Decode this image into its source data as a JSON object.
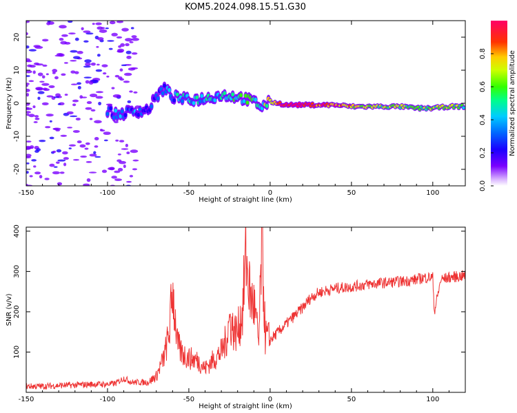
{
  "title": "KOM5.2024.098.15.51.G30",
  "colors": {
    "snr_line": "#ee3333",
    "axis": "#000000"
  },
  "chart_data": [
    {
      "type": "heatmap",
      "xlabel": "Height of straight line (km)",
      "ylabel": "Frequency (Hz)",
      "xlim": [
        -150,
        120
      ],
      "ylim": [
        -25,
        25
      ],
      "x_ticks": [
        -150,
        -100,
        -50,
        0,
        50,
        100
      ],
      "y_ticks": [
        -20,
        -10,
        0,
        10,
        20
      ],
      "colorbar": {
        "label": "Normalized spectral amplitude",
        "range": [
          0,
          1
        ],
        "ticks": [
          "0.0",
          "0.2",
          "0.4",
          "0.6",
          "0.8"
        ],
        "colormap": "rainbow (violet-blue-cyan-green-yellow-red-magenta)"
      },
      "ridge": [
        {
          "x": -100,
          "y": -2,
          "amp": 0.15
        },
        {
          "x": -95,
          "y": -3.5,
          "amp": 0.2
        },
        {
          "x": -85,
          "y": -2.5,
          "amp": 0.2
        },
        {
          "x": -75,
          "y": -2,
          "amp": 0.15
        },
        {
          "x": -70,
          "y": 2,
          "amp": 0.15
        },
        {
          "x": -65,
          "y": 4.5,
          "amp": 0.15
        },
        {
          "x": -60,
          "y": 2,
          "amp": 0.25
        },
        {
          "x": -50,
          "y": 1,
          "amp": 0.3
        },
        {
          "x": -40,
          "y": 1.5,
          "amp": 0.35
        },
        {
          "x": -30,
          "y": 2.5,
          "amp": 0.35
        },
        {
          "x": -20,
          "y": 2,
          "amp": 0.4
        },
        {
          "x": -10,
          "y": 0.5,
          "amp": 0.45
        },
        {
          "x": -5,
          "y": -1,
          "amp": 0.4
        },
        {
          "x": 0,
          "y": 0.5,
          "amp": 0.6
        },
        {
          "x": 10,
          "y": -0.5,
          "amp": 0.9
        },
        {
          "x": 20,
          "y": -0.5,
          "amp": 0.85
        },
        {
          "x": 30,
          "y": -0.5,
          "amp": 0.8
        },
        {
          "x": 40,
          "y": -0.5,
          "amp": 0.75
        },
        {
          "x": 50,
          "y": -1,
          "amp": 0.6
        },
        {
          "x": 60,
          "y": -1,
          "amp": 0.55
        },
        {
          "x": 70,
          "y": -1,
          "amp": 0.5
        },
        {
          "x": 80,
          "y": -1,
          "amp": 0.5
        },
        {
          "x": 90,
          "y": -1.5,
          "amp": 0.5
        },
        {
          "x": 100,
          "y": -1.5,
          "amp": 0.55
        },
        {
          "x": 110,
          "y": -1,
          "amp": 0.5
        },
        {
          "x": 120,
          "y": -1,
          "amp": 0.45
        }
      ]
    },
    {
      "type": "line",
      "xlabel": "Height of straight line (km)",
      "ylabel": "SNR (v/v)",
      "xlim": [
        -150,
        120
      ],
      "ylim": [
        0,
        410
      ],
      "x_ticks": [
        -150,
        -100,
        -50,
        0,
        50,
        100
      ],
      "y_ticks": [
        100,
        200,
        300,
        400
      ],
      "x": [
        -150,
        -140,
        -130,
        -120,
        -110,
        -100,
        -95,
        -90,
        -85,
        -80,
        -75,
        -70,
        -65,
        -62,
        -60,
        -57,
        -55,
        -50,
        -45,
        -40,
        -35,
        -30,
        -27,
        -25,
        -22,
        -20,
        -17,
        -15,
        -12,
        -10,
        -7,
        -5,
        -3,
        0,
        5,
        10,
        15,
        20,
        25,
        30,
        40,
        50,
        60,
        70,
        80,
        90,
        95,
        100,
        101,
        105,
        110,
        120
      ],
      "y": [
        15,
        15,
        17,
        18,
        20,
        20,
        22,
        35,
        25,
        25,
        25,
        40,
        90,
        150,
        260,
        120,
        100,
        85,
        80,
        60,
        80,
        100,
        130,
        180,
        150,
        150,
        200,
        340,
        230,
        220,
        120,
        380,
        140,
        130,
        150,
        170,
        190,
        210,
        235,
        248,
        258,
        262,
        268,
        272,
        275,
        280,
        285,
        285,
        200,
        280,
        285,
        290
      ]
    }
  ]
}
